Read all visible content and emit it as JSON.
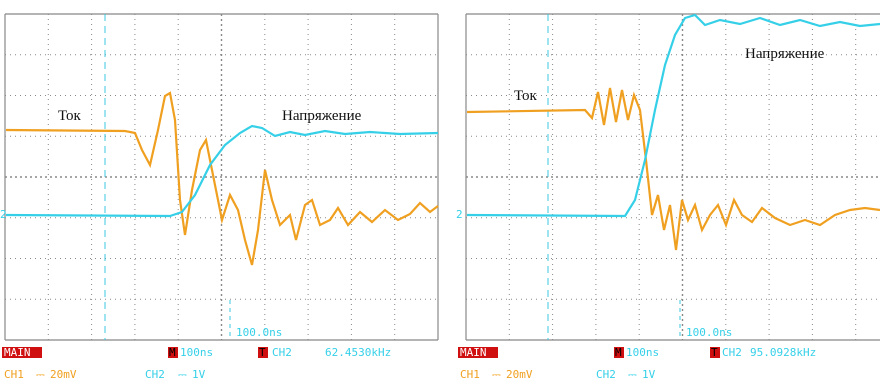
{
  "panels": [
    {
      "labels": {
        "current": "Ток",
        "voltage": "Напряжение"
      },
      "channel_marker": "2",
      "cursor": "100.0ns",
      "status": {
        "mode": "MAIN",
        "m": "M",
        "timebase": "100ns",
        "t": "T",
        "trigger_source": "CH2",
        "frequency": "62.4530kHz",
        "ch1": "CH1",
        "ch1_scale": "20mV",
        "ch2": "CH2",
        "ch2_scale": "1V"
      }
    },
    {
      "labels": {
        "current": "Ток",
        "voltage": "Напряжение"
      },
      "channel_marker": "2",
      "cursor": "100.0ns",
      "status": {
        "mode": "MAIN",
        "m": "M",
        "timebase": "100ns",
        "t": "T",
        "trigger_source": "CH2",
        "frequency": "95.0928kHz",
        "ch1": "CH1",
        "ch1_scale": "20mV",
        "ch2": "CH2",
        "ch2_scale": "1V"
      }
    }
  ]
}
